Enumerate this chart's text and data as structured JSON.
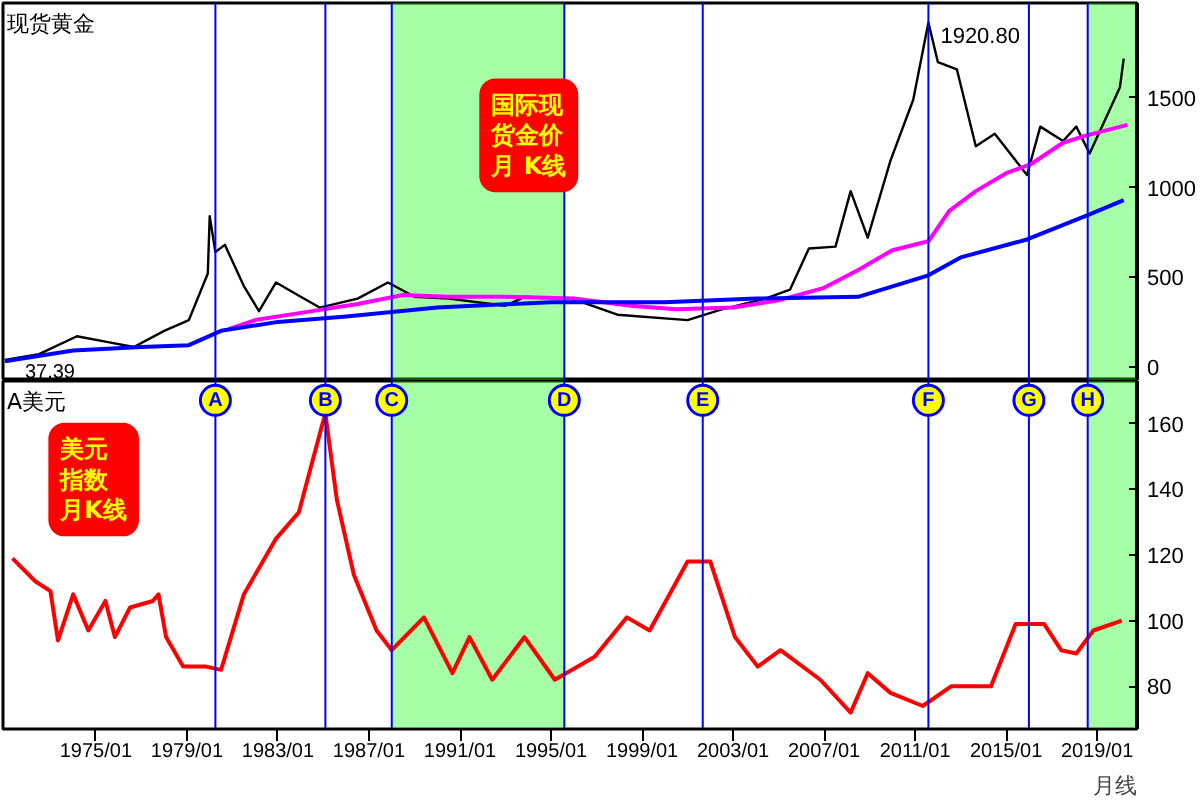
{
  "chart_data": [
    {
      "type": "line",
      "title": "现货黄金",
      "annotations": [
        "国际现货金价月 K线",
        {
          "text": "1920.80",
          "x": "2011-08",
          "y": 1920.8
        },
        {
          "text": "37.39",
          "x": "1971-01",
          "y": 37.39
        }
      ],
      "xlim": [
        "1970-12",
        "2020-10"
      ],
      "ylim": [
        -80,
        2030
      ],
      "yticks": [
        0,
        500,
        1000,
        1500
      ],
      "tick_labels": "y",
      "grid": false,
      "series": [
        {
          "color": "#000000",
          "x": [
            "1971-01",
            "1972-07",
            "1974-03",
            "1975-06",
            "1976-09",
            "1978-01",
            "1979-02",
            "1979-12",
            "1980-01",
            "1980-04",
            "1980-09",
            "1981-07",
            "1982-03",
            "1982-12",
            "1984-01",
            "1984-11",
            "1986-07",
            "1987-11",
            "1989-01",
            "1990-07",
            "1993-01",
            "1993-11",
            "1995-12",
            "1997-12",
            "2001-01",
            "2002-07",
            "2004-06",
            "2005-07",
            "2006-05",
            "2007-07",
            "2008-03",
            "2008-12",
            "2009-12",
            "2010-12",
            "2011-08",
            "2012-01",
            "2012-11",
            "2013-09",
            "2014-07",
            "2015-12",
            "2016-07",
            "2017-07",
            "2018-02",
            "2018-09",
            "2019-07",
            "2020-01",
            "2020-03"
          ],
          "values": [
            37.39,
            70,
            170,
            140,
            110,
            200,
            260,
            520,
            840,
            640,
            680,
            450,
            310,
            470,
            390,
            330,
            380,
            470,
            390,
            380,
            340,
            390,
            380,
            290,
            260,
            320,
            380,
            430,
            660,
            670,
            980,
            720,
            1150,
            1490,
            1920.8,
            1700,
            1660,
            1230,
            1300,
            1070,
            1340,
            1260,
            1340,
            1190,
            1420,
            1560,
            1720
          ]
        },
        {
          "color": "#ff00ff",
          "x": [
            "1980-11",
            "1982-01",
            "1984-07",
            "1986-07",
            "1988-07",
            "1990-07",
            "1993-01",
            "1996-01",
            "1998-07",
            "2000-07",
            "2003-01",
            "2005-01",
            "2007-01",
            "2008-07",
            "2010-01",
            "2011-08",
            "2012-07",
            "2013-09",
            "2015-01",
            "2016-02",
            "2017-07",
            "2018-07",
            "2020-05"
          ],
          "values": [
            210,
            260,
            310,
            350,
            400,
            390,
            390,
            380,
            340,
            320,
            330,
            370,
            440,
            540,
            650,
            700,
            870,
            980,
            1080,
            1130,
            1250,
            1290,
            1350
          ]
        },
        {
          "color": "#0000ff",
          "x": [
            "1971-01",
            "1974-01",
            "1977-01",
            "1979-02",
            "1980-07",
            "1983-01",
            "1986-01",
            "1990-01",
            "1995-01",
            "2000-01",
            "2004-01",
            "2008-07",
            "2011-08",
            "2013-01",
            "2015-12",
            "2018-09",
            "2020-03"
          ],
          "values": [
            30,
            90,
            110,
            120,
            200,
            250,
            280,
            330,
            360,
            360,
            380,
            390,
            510,
            610,
            710,
            850,
            930
          ]
        }
      ],
      "ref_lines": [
        {
          "axis": "x",
          "value": "1980-04",
          "color": "#0000ff"
        },
        {
          "axis": "x",
          "value": "1985-02",
          "color": "#0000ff"
        },
        {
          "axis": "x",
          "value": "1988-01",
          "color": "#0000ff"
        },
        {
          "axis": "x",
          "value": "1995-08",
          "color": "#0000ff"
        },
        {
          "axis": "x",
          "value": "2001-09",
          "color": "#0000ff"
        },
        {
          "axis": "x",
          "value": "2011-08",
          "color": "#0000ff"
        },
        {
          "axis": "x",
          "value": "2016-01",
          "color": "#0000ff"
        },
        {
          "axis": "x",
          "value": "2018-08",
          "color": "#0000ff"
        }
      ],
      "bands": [
        {
          "axis": "x",
          "from": "1988-01",
          "to": "1995-08",
          "color": "#00ff00"
        },
        {
          "axis": "x",
          "from": "2018-08",
          "to": "2020-09",
          "color": "#00ff00"
        }
      ]
    },
    {
      "type": "line",
      "title": "A美元",
      "annotations": [
        "美元指数月K线",
        "月线"
      ],
      "xlim": [
        "1970-12",
        "2020-10"
      ],
      "ylim": [
        67,
        173
      ],
      "yticks": [
        80,
        100,
        120,
        140,
        160
      ],
      "xticks": [
        {
          "value": "1975-01",
          "label": "1975/01"
        },
        {
          "value": "1979-01",
          "label": "1979/01"
        },
        {
          "value": "1983-01",
          "label": "1983/01"
        },
        {
          "value": "1987-01",
          "label": "1987/01"
        },
        {
          "value": "1991-01",
          "label": "1991/01"
        },
        {
          "value": "1995-01",
          "label": "1995/01"
        },
        {
          "value": "1999-01",
          "label": "1999/01"
        },
        {
          "value": "2003-01",
          "label": "2003/01"
        },
        {
          "value": "2007-01",
          "label": "2007/01"
        },
        {
          "value": "2011-01",
          "label": "2011/01"
        },
        {
          "value": "2015-01",
          "label": "2015/01"
        },
        {
          "value": "2019-01",
          "label": "2019/01"
        }
      ],
      "grid": false,
      "series": [
        {
          "color": "#ff0000",
          "x": [
            "1971-05",
            "1972-05",
            "1973-01",
            "1973-05",
            "1974-01",
            "1974-09",
            "1975-06",
            "1975-11",
            "1976-07",
            "1977-07",
            "1977-10",
            "1978-02",
            "1978-11",
            "1979-11",
            "1980-07",
            "1981-07",
            "1982-12",
            "1983-12",
            "1984-12",
            "1985-02",
            "1985-08",
            "1986-05",
            "1987-05",
            "1988-01",
            "1989-06",
            "1990-09",
            "1991-06",
            "1992-06",
            "1993-11",
            "1995-03",
            "1996-12",
            "1998-05",
            "1999-05",
            "2001-01",
            "2002-01",
            "2003-02",
            "2004-02",
            "2005-02",
            "2006-11",
            "2008-03",
            "2008-12",
            "2009-12",
            "2011-05",
            "2012-08",
            "2014-05",
            "2015-06",
            "2016-09",
            "2017-06",
            "2018-02",
            "2018-11",
            "2020-02"
          ],
          "values": [
            119,
            112,
            109,
            94,
            108,
            97,
            106,
            95,
            104,
            106,
            108,
            95,
            86,
            86,
            85,
            108,
            125,
            133,
            159,
            163,
            137,
            114,
            97,
            91,
            101,
            84,
            95,
            82,
            95,
            82,
            89,
            101,
            97,
            118,
            118,
            95,
            86,
            91,
            82,
            72,
            84,
            78,
            74,
            80,
            80,
            99,
            99,
            91,
            90,
            97,
            100
          ]
        }
      ],
      "ref_lines": [
        {
          "axis": "x",
          "value": "1980-04",
          "label": "A",
          "color": "#0000ff"
        },
        {
          "axis": "x",
          "value": "1985-02",
          "label": "B",
          "color": "#0000ff"
        },
        {
          "axis": "x",
          "value": "1988-01",
          "label": "C",
          "color": "#0000ff"
        },
        {
          "axis": "x",
          "value": "1995-08",
          "label": "D",
          "color": "#0000ff"
        },
        {
          "axis": "x",
          "value": "2001-09",
          "label": "E",
          "color": "#0000ff"
        },
        {
          "axis": "x",
          "value": "2011-08",
          "label": "F",
          "color": "#0000ff"
        },
        {
          "axis": "x",
          "value": "2016-01",
          "label": "G",
          "color": "#0000ff"
        },
        {
          "axis": "x",
          "value": "2018-08",
          "label": "H",
          "color": "#0000ff"
        }
      ],
      "bands": [
        {
          "axis": "x",
          "from": "1988-01",
          "to": "1995-08",
          "color": "#00ff00"
        },
        {
          "axis": "x",
          "from": "2018-08",
          "to": "2020-09",
          "color": "#00ff00"
        }
      ]
    }
  ]
}
